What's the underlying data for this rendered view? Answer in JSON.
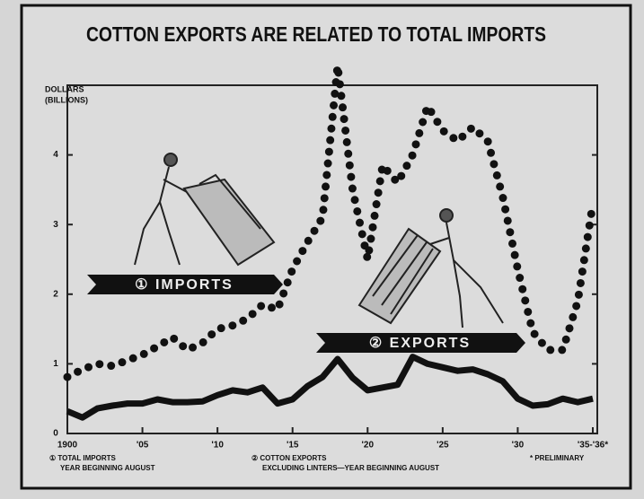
{
  "chart_data": {
    "type": "line",
    "title": "COTTON EXPORTS ARE RELATED TO TOTAL IMPORTS",
    "y_label": [
      "DOLLARS",
      "(BILLIONS)"
    ],
    "x": [
      1900,
      1901,
      1902,
      1903,
      1904,
      1905,
      1906,
      1907,
      1908,
      1909,
      1910,
      1911,
      1912,
      1913,
      1914,
      1915,
      1916,
      1917,
      1918,
      1919,
      1920,
      1921,
      1922,
      1923,
      1924,
      1925,
      1926,
      1927,
      1928,
      1929,
      1930,
      1931,
      1932,
      1933,
      1934,
      1935
    ],
    "series": [
      {
        "name": "① IMPORTS",
        "color": "#111111",
        "style": "dotted",
        "values": [
          0.81,
          0.92,
          1.0,
          0.97,
          1.05,
          1.13,
          1.25,
          1.38,
          1.2,
          1.3,
          1.5,
          1.55,
          1.65,
          1.85,
          1.78,
          2.36,
          2.75,
          3.1,
          5.28,
          3.5,
          2.5,
          3.85,
          3.6,
          4.0,
          4.7,
          4.35,
          4.2,
          4.4,
          4.2,
          3.4,
          2.36,
          1.46,
          1.2,
          1.2,
          1.9,
          3.3
        ]
      },
      {
        "name": "② EXPORTS",
        "color": "#111111",
        "style": "solid",
        "values": [
          0.32,
          0.23,
          0.36,
          0.4,
          0.43,
          0.43,
          0.49,
          0.45,
          0.45,
          0.46,
          0.55,
          0.62,
          0.59,
          0.66,
          0.43,
          0.49,
          0.68,
          0.81,
          1.07,
          0.8,
          0.62,
          0.66,
          0.7,
          1.1,
          1.0,
          0.95,
          0.9,
          0.92,
          0.85,
          0.75,
          0.5,
          0.4,
          0.42,
          0.5,
          0.45,
          0.5
        ]
      }
    ],
    "xlim": [
      1900,
      1935
    ],
    "xticks": [
      {
        "value": 1900,
        "label": "1900"
      },
      {
        "value": 1905,
        "label": "'05"
      },
      {
        "value": 1910,
        "label": "'10"
      },
      {
        "value": 1915,
        "label": "'15"
      },
      {
        "value": 1920,
        "label": "'20"
      },
      {
        "value": 1925,
        "label": "'25"
      },
      {
        "value": 1930,
        "label": "'30"
      },
      {
        "value": 1935,
        "label": "'35-'36*"
      }
    ],
    "ylim": [
      0,
      5
    ],
    "yticks": [
      0,
      1,
      2,
      3,
      4
    ],
    "footnotes": [
      [
        "① TOTAL IMPORTS",
        "YEAR BEGINNING AUGUST"
      ],
      [
        "② COTTON EXPORTS",
        "EXCLUDING LINTERS—YEAR BEGINNING AUGUST"
      ],
      [
        "* PRELIMINARY"
      ]
    ]
  }
}
